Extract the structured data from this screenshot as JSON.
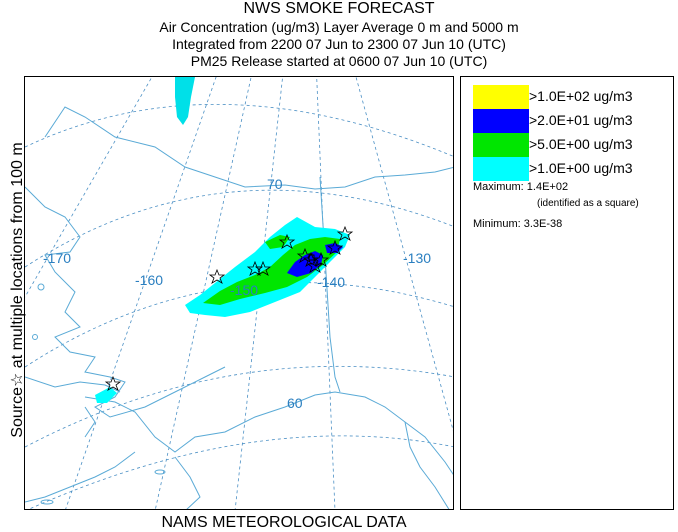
{
  "header": {
    "title": "NWS SMOKE FORECAST",
    "line2": "Air Concentration (ug/m3) Layer Average    0 m and  5000 m",
    "line3": "Integrated from 2200 07 Jun to 2300 07 Jun 10 (UTC)",
    "line4": "PM25 Release started at 0600 07 Jun 10 (UTC)"
  },
  "side_label": "Source☆ at multiple locations  from   100 m",
  "bottom_label": "NAMS METEOROLOGICAL DATA",
  "map": {
    "longitude_labels": [
      "-170",
      "-160",
      "-150",
      "-140",
      "-130"
    ],
    "latitude_labels": [
      "70",
      "60"
    ],
    "land_outline_color": "#5aaad6",
    "graticule_color": "#4a8fc4"
  },
  "legend": {
    "items": [
      {
        "label": ">1.0E+02 ug/m3",
        "color": "#ffff00"
      },
      {
        "label": ">2.0E+01 ug/m3",
        "color": "#0000ff"
      },
      {
        "label": ">5.0E+00 ug/m3",
        "color": "#00e600"
      },
      {
        "label": ">1.0E+00 ug/m3",
        "color": "#00ffff"
      }
    ],
    "maximum_label": "Maximum:",
    "maximum_value": "1.4E+02",
    "maximum_note": "(identified as a square)",
    "minimum_label": "Minimum:",
    "minimum_value": "3.3E-38"
  }
}
